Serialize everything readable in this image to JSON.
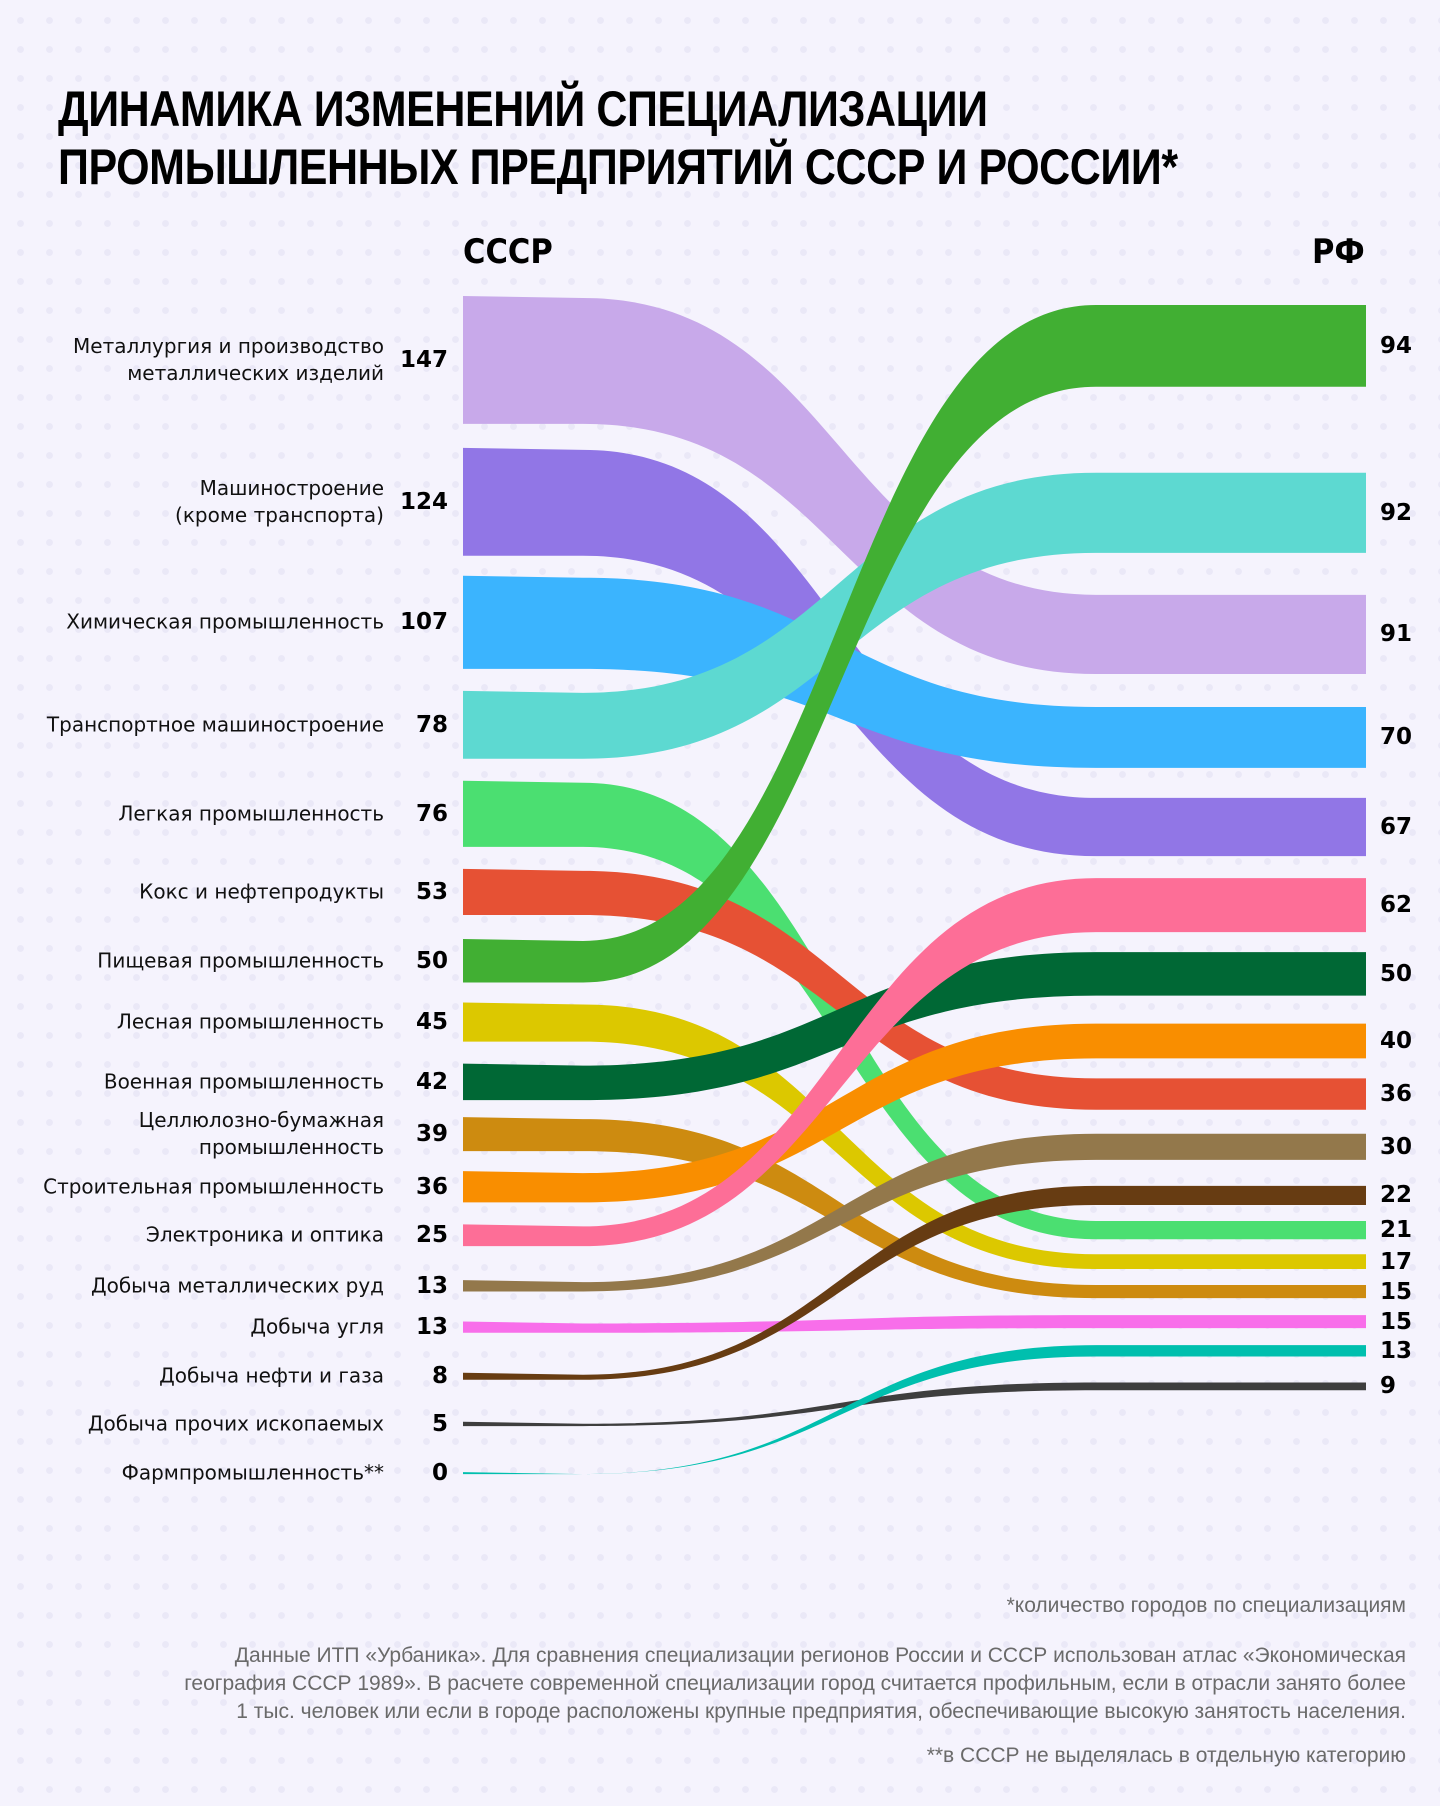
{
  "title": {
    "line1": "ДИНАМИКА ИЗМЕНЕНИЙ СПЕЦИАЛИЗАЦИИ",
    "line2": "ПРОМЫШЛЕННЫХ ПРЕДПРИЯТИЙ СССР И РОССИИ*"
  },
  "footnotes": {
    "note1": "*количество городов по специализациям",
    "source": "Данные ИТП «Урбаника». Для сравнения специализации регионов России и СССР использован атлас «Экономическая\nгеография СССР 1989». В расчете современной специализации город считается профильным, если в отрасли занято более\n1 тыс. человек или если в городе расположены крупные предприятия, обеспечивающие высокую занятость населения.",
    "note2": "**в СССР не выделялась в отдельную категорию"
  },
  "chart_data": {
    "type": "slope-bump (alluvial)",
    "title": "Динамика изменений специализации промышленных предприятий СССР и России*",
    "columns": [
      "СССР",
      "РФ"
    ],
    "unit": "количество городов по специализациям",
    "series": [
      {
        "name": "Металлургия и производство\nметаллических изделий",
        "ussr": 147,
        "rf": 91,
        "color": "#c8a9ea"
      },
      {
        "name": "Машиностроение\n(кроме транспорта)",
        "ussr": 124,
        "rf": 67,
        "color": "#9176e6"
      },
      {
        "name": "Химическая промышленность",
        "ussr": 107,
        "rf": 70,
        "color": "#3bb4fe"
      },
      {
        "name": "Транспортное машиностроение",
        "ussr": 78,
        "rf": 92,
        "color": "#5dd9d1"
      },
      {
        "name": "Легкая промышленность",
        "ussr": 76,
        "rf": 21,
        "color": "#4bdf71"
      },
      {
        "name": "Кокс и нефтепродукты",
        "ussr": 53,
        "rf": 36,
        "color": "#e65134"
      },
      {
        "name": "Пищевая промышленность",
        "ussr": 50,
        "rf": 94,
        "color": "#41af33"
      },
      {
        "name": "Лесная промышленность",
        "ussr": 45,
        "rf": 17,
        "color": "#dcc800"
      },
      {
        "name": "Военная промышленность",
        "ussr": 42,
        "rf": 50,
        "color": "#006835"
      },
      {
        "name": "Целлюлозно-бумажная\nпромышленность",
        "ussr": 39,
        "rf": 15,
        "color": "#cd8b10"
      },
      {
        "name": "Строительная промышленность",
        "ussr": 36,
        "rf": 40,
        "color": "#f98e00"
      },
      {
        "name": "Электроника и оптика",
        "ussr": 25,
        "rf": 62,
        "color": "#fd6e97"
      },
      {
        "name": "Добыча металлических руд",
        "ussr": 13,
        "rf": 30,
        "color": "#93784b"
      },
      {
        "name": "Добыча угля",
        "ussr": 13,
        "rf": 15,
        "color": "#f86eea"
      },
      {
        "name": "Добыча нефти и газа",
        "ussr": 8,
        "rf": 22,
        "color": "#673c12"
      },
      {
        "name": "Добыча прочих ископаемых",
        "ussr": 5,
        "rf": 9,
        "color": "#3e3e3e"
      },
      {
        "name": "Фармпромышленность**",
        "ussr": 0,
        "rf": 13,
        "color": "#00bfae"
      }
    ]
  }
}
